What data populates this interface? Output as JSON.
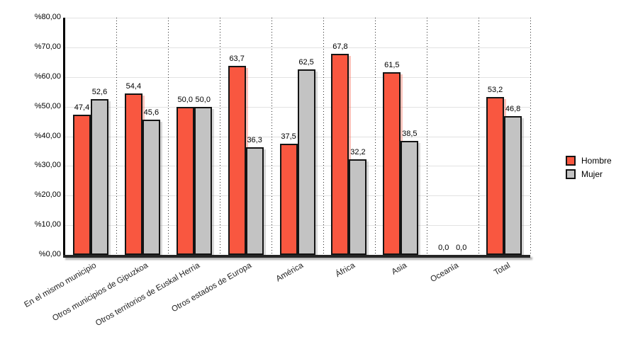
{
  "chart_data": {
    "type": "bar",
    "title": "",
    "xlabel": "",
    "ylabel": "",
    "categories": [
      "En el mismo municipio",
      "Otros municipios de Gipuzkoa",
      "Otros territorios de Euskal Herria",
      "Otros estados de Europa",
      "América",
      "África",
      "Asia",
      "Oceanía",
      "Total"
    ],
    "series": [
      {
        "name": "Hombre",
        "color": "#f95740",
        "shadow_color": "rgba(249,87,64,0.35)",
        "values": [
          47.4,
          54.4,
          50.0,
          63.7,
          37.5,
          67.8,
          61.5,
          0.0,
          53.2
        ],
        "value_labels": [
          "47,4",
          "54,4",
          "50,0",
          "63,7",
          "37,5",
          "67,8",
          "61,5",
          "0,0",
          "53,2"
        ]
      },
      {
        "name": "Mujer",
        "color": "#c3c3c3",
        "shadow_color": "rgba(125,125,125,0.30)",
        "values": [
          52.6,
          45.6,
          50.0,
          36.3,
          62.5,
          32.2,
          38.5,
          0.0,
          46.8
        ],
        "value_labels": [
          "52,6",
          "45,6",
          "50,0",
          "36,3",
          "62,5",
          "32,2",
          "38,5",
          "0,0",
          "46,8"
        ]
      }
    ],
    "ylim": [
      0,
      80
    ],
    "ytick_step": 10,
    "ytick_labels": [
      "%0,00",
      "%10,00",
      "%20,00",
      "%30,00",
      "%40,00",
      "%50,00",
      "%60,00",
      "%70,00",
      "%80,00"
    ],
    "grid": "horizontal solid gridlines, vertical dotted category separators",
    "legend_position": "right"
  }
}
